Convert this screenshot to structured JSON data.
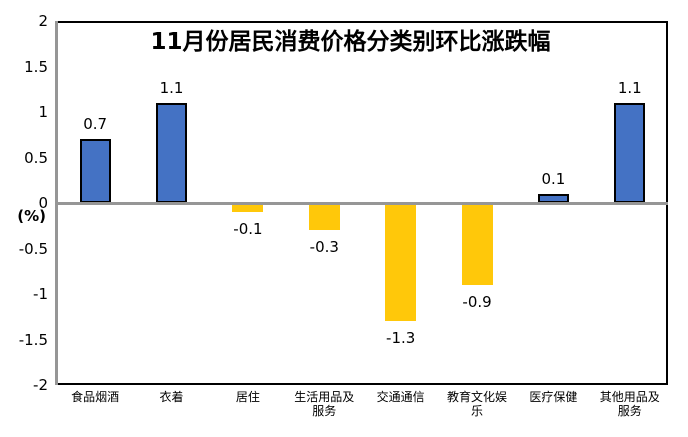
{
  "title": "11月份居民消费价格分类别环比涨跌幅",
  "chart_data": {
    "type": "bar",
    "title": "11月份居民消费价格分类别环比涨跌幅",
    "xlabel": "",
    "ylabel": "(%)",
    "ylim": [
      -2,
      2
    ],
    "ytick_step": 0.5,
    "yticks": [
      2,
      1.5,
      1,
      0.5,
      0,
      -0.5,
      -1,
      -1.5,
      -2
    ],
    "ytick_labels": [
      "2",
      "1.5",
      "1",
      "0.5",
      "0",
      "-0.5",
      "-1",
      "-1.5",
      "-2"
    ],
    "categories": [
      "食品烟酒",
      "衣着",
      "居住",
      "生活用品及\n服务",
      "交通通信",
      "教育文化娱\n乐",
      "医疗保健",
      "其他用品及\n服务"
    ],
    "values": [
      0.7,
      1.1,
      -0.1,
      -0.3,
      -1.3,
      -0.9,
      0.1,
      1.1
    ],
    "value_labels": [
      "0.7",
      "1.1",
      "-0.1",
      "-0.3",
      "-1.3",
      "-0.9",
      "0.1",
      "1.1"
    ],
    "grid": false,
    "legend": false,
    "colors": {
      "positive_bar": "#4472C4",
      "positive_bar_border": "#000000",
      "negative_bar": "#FFC80A",
      "axis_line": "#969696",
      "plot_border": "#000000",
      "text": "#000000",
      "background": "#FFFFFF"
    }
  }
}
